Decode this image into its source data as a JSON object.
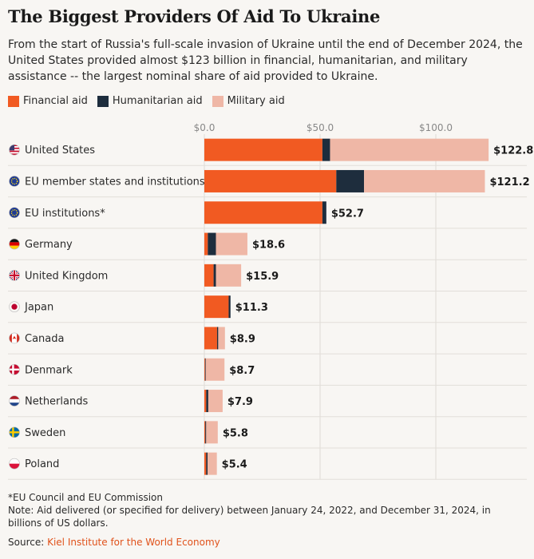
{
  "title": "The Biggest Providers Of Aid To Ukraine",
  "subtitle": "From the start of Russia's full-scale invasion of Ukraine until the end of December 2024, the United States provided almost $123 billion in financial, humanitarian, and military assistance -- the largest nominal share of aid provided to Ukraine.",
  "colors": {
    "financial": "#f15a22",
    "humanitarian": "#1e2d3d",
    "military": "#efb7a6",
    "grid": "#dedad5",
    "separator": "#e2ded9",
    "text": "#2a2a2a",
    "axis_text": "#888888",
    "source_link": "#e0521b"
  },
  "legend": [
    {
      "key": "financial",
      "label": "Financial aid"
    },
    {
      "key": "humanitarian",
      "label": "Humanitarian aid"
    },
    {
      "key": "military",
      "label": "Military aid"
    }
  ],
  "chart_data": {
    "type": "bar",
    "orientation": "horizontal",
    "stacked": true,
    "title": "The Biggest Providers Of Aid To Ukraine",
    "unit": "billions of US dollars",
    "xlim": [
      0,
      125
    ],
    "xticks": [
      0,
      50,
      100
    ],
    "xtick_labels": [
      "$0.0",
      "$50.0",
      "$100.0"
    ],
    "categories": [
      "United States",
      "EU member states and institutions*",
      "EU institutions*",
      "Germany",
      "United Kingdom",
      "Japan",
      "Canada",
      "Denmark",
      "Netherlands",
      "Sweden",
      "Poland"
    ],
    "flag_icons": [
      "us-flag-icon",
      "eu-flag-icon",
      "eu-flag-icon",
      "germany-flag-icon",
      "uk-flag-icon",
      "japan-flag-icon",
      "canada-flag-icon",
      "denmark-flag-icon",
      "netherlands-flag-icon",
      "sweden-flag-icon",
      "poland-flag-icon"
    ],
    "series": [
      {
        "name": "Financial aid",
        "key": "financial",
        "values": [
          51.0,
          57.0,
          51.0,
          1.5,
          4.0,
          10.5,
          5.5,
          0.3,
          0.8,
          0.4,
          0.8
        ]
      },
      {
        "name": "Humanitarian aid",
        "key": "humanitarian",
        "values": [
          3.3,
          12.0,
          1.7,
          3.5,
          1.0,
          0.8,
          0.5,
          0.3,
          0.9,
          0.4,
          0.6
        ]
      },
      {
        "name": "Military aid",
        "key": "military",
        "values": [
          68.5,
          52.2,
          0.0,
          13.6,
          10.9,
          0.0,
          2.9,
          8.1,
          6.2,
          5.0,
          4.0
        ]
      }
    ],
    "totals": [
      122.8,
      121.2,
      52.7,
      18.6,
      15.9,
      11.3,
      8.9,
      8.7,
      7.9,
      5.8,
      5.4
    ],
    "total_labels": [
      "$122.8",
      "$121.2",
      "$52.7",
      "$18.6",
      "$15.9",
      "$11.3",
      "$8.9",
      "$8.7",
      "$7.9",
      "$5.8",
      "$5.4"
    ]
  },
  "footnote": {
    "line1": "*EU Council and EU Commission",
    "line2": "Note: Aid delivered (or specified for delivery) between January 24, 2022, and December 31, 2024, in billions of US dollars."
  },
  "source": {
    "label": "Source: ",
    "link_text": "Kiel Institute for the World Economy"
  }
}
